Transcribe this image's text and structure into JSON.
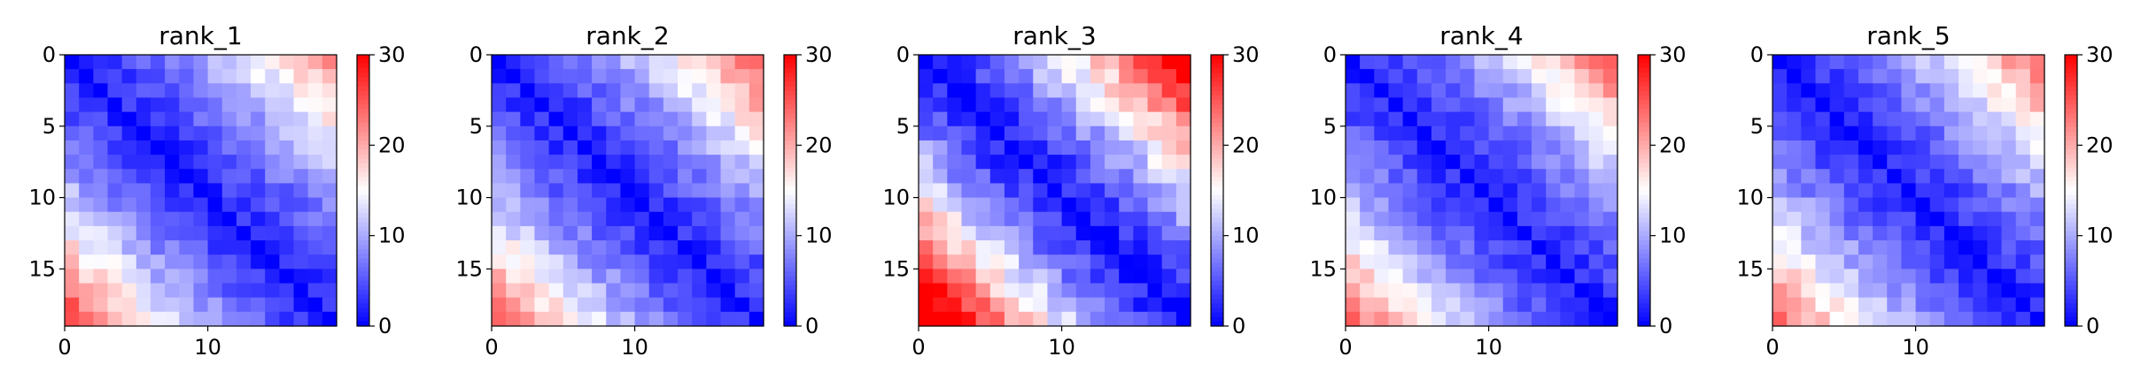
{
  "chart_data": [
    {
      "type": "heatmap",
      "title": "rank_1",
      "size": 19,
      "clim": [
        0,
        30
      ],
      "colormap": "bwr",
      "yticks": [
        0,
        5,
        10,
        15
      ],
      "xticks": [
        0,
        10
      ],
      "colorbar_ticks": [
        0,
        10,
        20,
        30
      ],
      "pattern": {
        "near": 2,
        "slope": 0.55,
        "lowerBoost": 7,
        "upperBoost": 5,
        "noise": 2,
        "seed": 11
      }
    },
    {
      "type": "heatmap",
      "title": "rank_2",
      "size": 19,
      "clim": [
        0,
        30
      ],
      "colormap": "bwr",
      "yticks": [
        0,
        5,
        10,
        15
      ],
      "xticks": [
        0,
        10
      ],
      "colorbar_ticks": [
        0,
        10,
        20,
        30
      ],
      "pattern": {
        "near": 2,
        "slope": 0.6,
        "lowerBoost": 6,
        "upperBoost": 6,
        "noise": 2,
        "seed": 23
      }
    },
    {
      "type": "heatmap",
      "title": "rank_3",
      "size": 19,
      "clim": [
        0,
        30
      ],
      "colormap": "bwr",
      "yticks": [
        0,
        5,
        10,
        15
      ],
      "xticks": [
        0,
        10
      ],
      "colorbar_ticks": [
        0,
        10,
        20,
        30
      ],
      "pattern": {
        "near": 1,
        "slope": 0.95,
        "lowerBoost": 9,
        "upperBoost": 7,
        "noise": 2.5,
        "seed": 37
      }
    },
    {
      "type": "heatmap",
      "title": "rank_4",
      "size": 19,
      "clim": [
        0,
        30
      ],
      "colormap": "bwr",
      "yticks": [
        0,
        5,
        10,
        15
      ],
      "xticks": [
        0,
        10
      ],
      "colorbar_ticks": [
        0,
        10,
        20,
        30
      ],
      "pattern": {
        "near": 2,
        "slope": 0.55,
        "lowerBoost": 6,
        "upperBoost": 6,
        "noise": 2,
        "seed": 41
      }
    },
    {
      "type": "heatmap",
      "title": "rank_5",
      "size": 19,
      "clim": [
        0,
        30
      ],
      "colormap": "bwr",
      "yticks": [
        0,
        5,
        10,
        15
      ],
      "xticks": [
        0,
        10
      ],
      "colorbar_ticks": [
        0,
        10,
        20,
        30
      ],
      "pattern": {
        "near": 2,
        "slope": 0.55,
        "lowerBoost": 6,
        "upperBoost": 6,
        "noise": 2,
        "seed": 53
      }
    }
  ]
}
